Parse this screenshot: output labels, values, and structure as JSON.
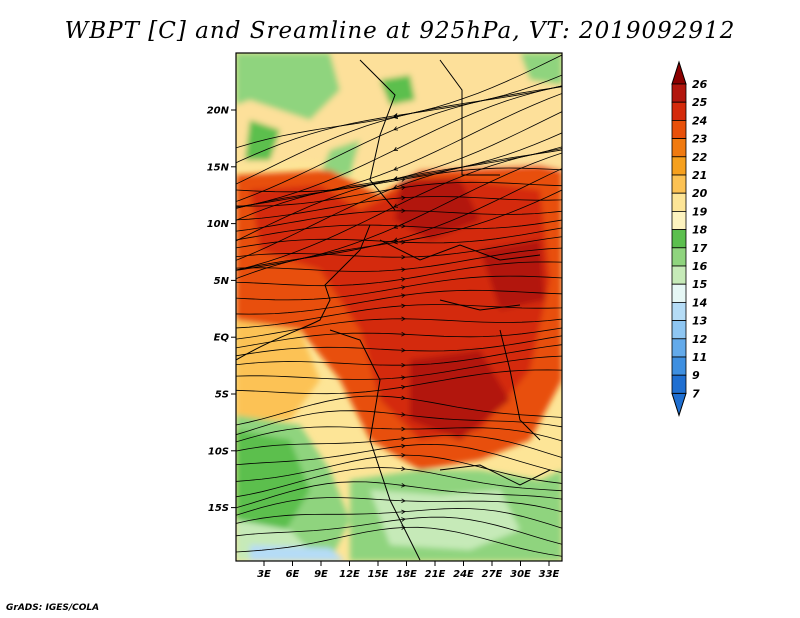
{
  "title": "WBPT [C] and Sreamline at 925hPa, VT: 2019092912",
  "footer": "GrADS: IGES/COLA",
  "map": {
    "lat_labels": [
      "20N",
      "15N",
      "10N",
      "5N",
      "EQ",
      "5S",
      "10S",
      "15S"
    ],
    "lon_labels": [
      "3E",
      "6E",
      "9E",
      "12E",
      "15E",
      "18E",
      "21E",
      "24E",
      "27E",
      "30E",
      "33E"
    ]
  },
  "colorbar": {
    "labels": [
      "26",
      "25",
      "24",
      "23",
      "22",
      "21",
      "20",
      "19",
      "18",
      "17",
      "16",
      "15",
      "14",
      "13",
      "12",
      "11",
      "9",
      "7"
    ],
    "colors": [
      "#8b0000",
      "#b2160d",
      "#d42a0b",
      "#e8500a",
      "#f07a10",
      "#f6a01e",
      "#fcc254",
      "#fde597",
      "#fdf3bf",
      "#5bbf4e",
      "#8fd47e",
      "#c6eab8",
      "#e6f7f5",
      "#b5dcf6",
      "#8ec6f2",
      "#63aaea",
      "#3e8fe0",
      "#1f6fd1"
    ]
  },
  "legend": {
    "tip_high_color": "#8b0000",
    "tip_low_color": "#1f6fd1"
  }
}
